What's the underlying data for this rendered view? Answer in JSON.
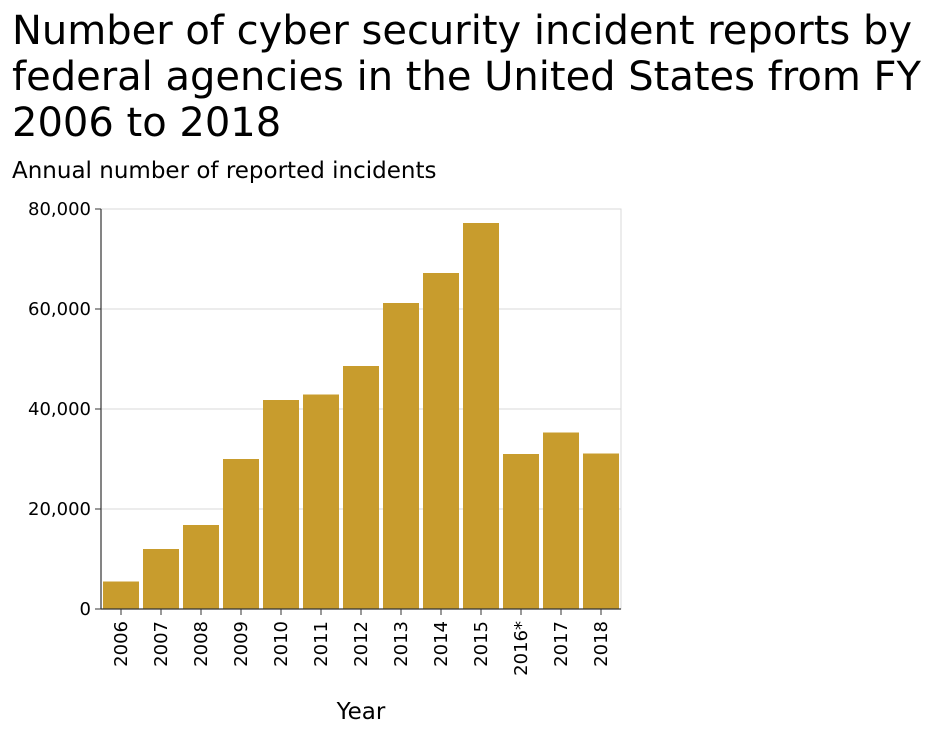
{
  "chart_data": {
    "type": "bar",
    "title": "Number of cyber security incident reports by federal agencies in the United States from FY 2006 to 2018",
    "ylabel": "Annual number of reported incidents",
    "xlabel": "Year",
    "categories": [
      "2006",
      "2007",
      "2008",
      "2009",
      "2010",
      "2011",
      "2012",
      "2013",
      "2014",
      "2015",
      "2016*",
      "2017",
      "2018"
    ],
    "values": [
      5500,
      12000,
      16800,
      30000,
      41800,
      42900,
      48600,
      61200,
      67200,
      77200,
      31000,
      35300,
      31100
    ],
    "ylim": [
      0,
      80000
    ],
    "yticks": [
      "0",
      "20,000",
      "40,000",
      "60,000",
      "80,000"
    ],
    "ytick_values": [
      0,
      20000,
      40000,
      60000,
      80000
    ],
    "grid": true,
    "bar_color": "#c89c2d"
  }
}
